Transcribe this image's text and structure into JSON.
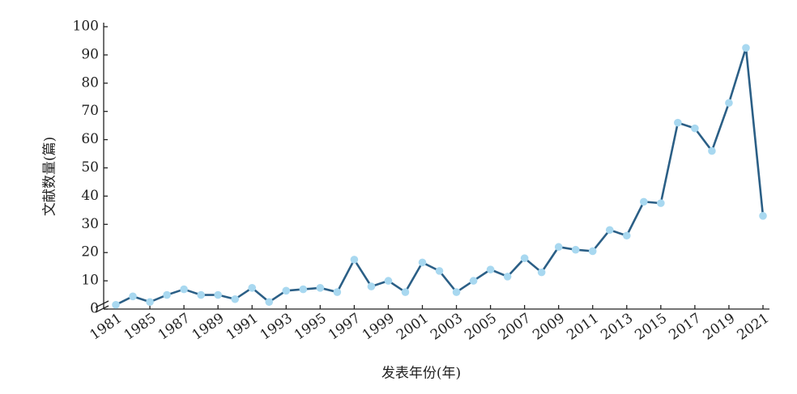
{
  "chart_data": {
    "type": "line",
    "y_label": "文献数量(篇)",
    "x_label": "发表年份(年)",
    "categories": [
      "1981",
      null,
      "1985",
      null,
      "1987",
      null,
      "1989",
      null,
      "1991",
      null,
      "1993",
      null,
      "1995",
      null,
      "1997",
      null,
      "1999",
      null,
      "2001",
      null,
      "2003",
      null,
      "2005",
      null,
      "2007",
      null,
      "2009",
      null,
      "2011",
      null,
      "2013",
      null,
      "2015",
      null,
      "2017",
      null,
      "2019",
      null,
      "2021"
    ],
    "series": [
      {
        "name": "文献数量",
        "color": "#2b5f86",
        "marker_color": "#a8d8f0",
        "values": [
          1.5,
          4.5,
          2.5,
          5,
          7,
          5,
          5,
          3.5,
          7.5,
          2.5,
          6.5,
          7,
          7.5,
          6,
          17.5,
          8,
          10,
          6,
          16.5,
          13.5,
          6,
          10,
          14,
          11.5,
          18,
          13,
          22,
          21,
          20.5,
          28,
          26,
          38,
          37.5,
          66,
          64,
          56,
          73,
          92.5,
          33
        ]
      }
    ],
    "ylim": [
      0,
      100
    ],
    "yticks": [
      0,
      10,
      20,
      30,
      40,
      50,
      60,
      70,
      80,
      90,
      100
    ],
    "grid": false
  }
}
